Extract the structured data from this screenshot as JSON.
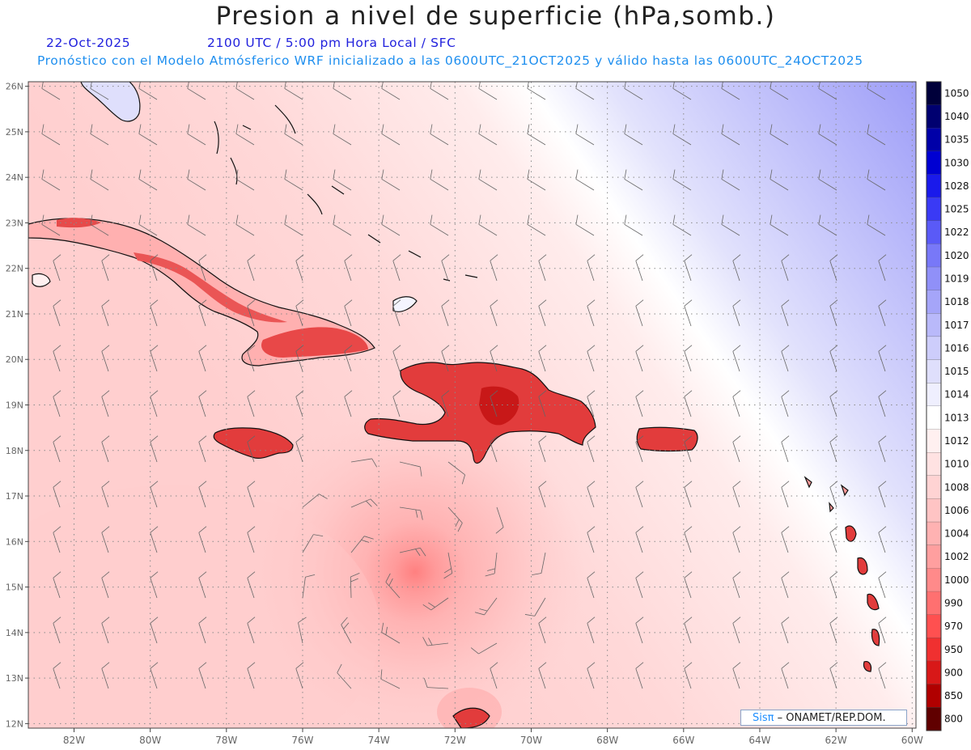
{
  "header": {
    "title": "Presion a nivel de superficie (hPa,somb.)",
    "date": "22-Oct-2025",
    "valid_time": "2100 UTC / 5:00 pm Hora Local / SFC",
    "model_info": "Pronóstico con el Modelo Atmósferico WRF inicializado a las 0600UTC_21OCT2025 y válido hasta las  0600UTC_24OCT2025"
  },
  "map": {
    "lon_range": [
      -83.2,
      -59.9
    ],
    "lat_range": [
      11.9,
      26.1
    ],
    "lon_ticks": [
      {
        "v": -82,
        "t": "82W"
      },
      {
        "v": -80,
        "t": "80W"
      },
      {
        "v": -78,
        "t": "78W"
      },
      {
        "v": -76,
        "t": "76W"
      },
      {
        "v": -74,
        "t": "74W"
      },
      {
        "v": -72,
        "t": "72W"
      },
      {
        "v": -70,
        "t": "70W"
      },
      {
        "v": -68,
        "t": "68W"
      },
      {
        "v": -66,
        "t": "66W"
      },
      {
        "v": -64,
        "t": "64W"
      },
      {
        "v": -62,
        "t": "62W"
      },
      {
        "v": -60,
        "t": "60W"
      }
    ],
    "lat_ticks": [
      {
        "v": 26,
        "t": "26N"
      },
      {
        "v": 25,
        "t": "25N"
      },
      {
        "v": 24,
        "t": "24N"
      },
      {
        "v": 23,
        "t": "23N"
      },
      {
        "v": 22,
        "t": "22N"
      },
      {
        "v": 21,
        "t": "21N"
      },
      {
        "v": 20,
        "t": "20N"
      },
      {
        "v": 19,
        "t": "19N"
      },
      {
        "v": 18,
        "t": "18N"
      },
      {
        "v": 17,
        "t": "17N"
      },
      {
        "v": 16,
        "t": "16N"
      },
      {
        "v": 15,
        "t": "15N"
      },
      {
        "v": 14,
        "t": "14N"
      },
      {
        "v": 13,
        "t": "13N"
      },
      {
        "v": 12,
        "t": "12N"
      }
    ],
    "low_pressure_center": {
      "lon": -73.1,
      "lat": 15.3
    }
  },
  "colorbar": {
    "levels": [
      {
        "label": "1050",
        "color": "#00003a"
      },
      {
        "label": "1040",
        "color": "#000070"
      },
      {
        "label": "1035",
        "color": "#0000a8"
      },
      {
        "label": "1030",
        "color": "#0000d2"
      },
      {
        "label": "1028",
        "color": "#1a1aeb"
      },
      {
        "label": "1025",
        "color": "#3a3af5"
      },
      {
        "label": "1022",
        "color": "#5a5af7"
      },
      {
        "label": "1020",
        "color": "#7878f8"
      },
      {
        "label": "1019",
        "color": "#9090f8"
      },
      {
        "label": "1018",
        "color": "#a5a5f9"
      },
      {
        "label": "1017",
        "color": "#b9b9fa"
      },
      {
        "label": "1016",
        "color": "#cdcdfb"
      },
      {
        "label": "1015",
        "color": "#dfdffc"
      },
      {
        "label": "1014",
        "color": "#efeffe"
      },
      {
        "label": "1013",
        "color": "#ffffff"
      },
      {
        "label": "1012",
        "color": "#fff0f0"
      },
      {
        "label": "1010",
        "color": "#ffe2e2"
      },
      {
        "label": "1008",
        "color": "#ffd3d3"
      },
      {
        "label": "1006",
        "color": "#ffc4c4"
      },
      {
        "label": "1004",
        "color": "#ffb2b2"
      },
      {
        "label": "1002",
        "color": "#ff9f9f"
      },
      {
        "label": "1000",
        "color": "#ff8a8a"
      },
      {
        "label": "990",
        "color": "#ff7070"
      },
      {
        "label": "970",
        "color": "#ff5050"
      },
      {
        "label": "950",
        "color": "#f03030"
      },
      {
        "label": "900",
        "color": "#d81818"
      },
      {
        "label": "850",
        "color": "#b00000"
      },
      {
        "label": "800",
        "color": "#600000"
      }
    ]
  },
  "credit": {
    "sis": "Sisπ",
    "rest": "– ONAMET/REP.DOM."
  }
}
